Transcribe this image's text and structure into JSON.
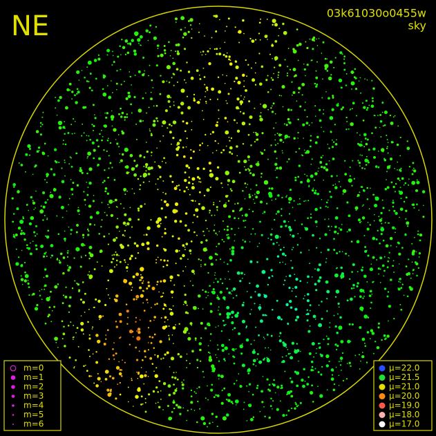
{
  "corner_label": "NE",
  "image_id": "03k61030o0455w",
  "filter": "sky",
  "magnitude_legend": {
    "entries": [
      "m=0",
      "m=1",
      "m=2",
      "m=3",
      "m=4",
      "m=5",
      "m=6"
    ]
  },
  "brightness_legend": {
    "entries": [
      {
        "label": "μ=22.0",
        "color": "#2a4cff"
      },
      {
        "label": "μ=21.5",
        "color": "#22dd33"
      },
      {
        "label": "μ=21.0",
        "color": "#e6e000"
      },
      {
        "label": "μ=20.0",
        "color": "#ff8c10"
      },
      {
        "label": "μ=19.0",
        "color": "#ff5a4a"
      },
      {
        "label": "μ=18.0",
        "color": "#ffb0b0"
      },
      {
        "label": "μ=17.0",
        "color": "#ffffff"
      }
    ]
  }
}
